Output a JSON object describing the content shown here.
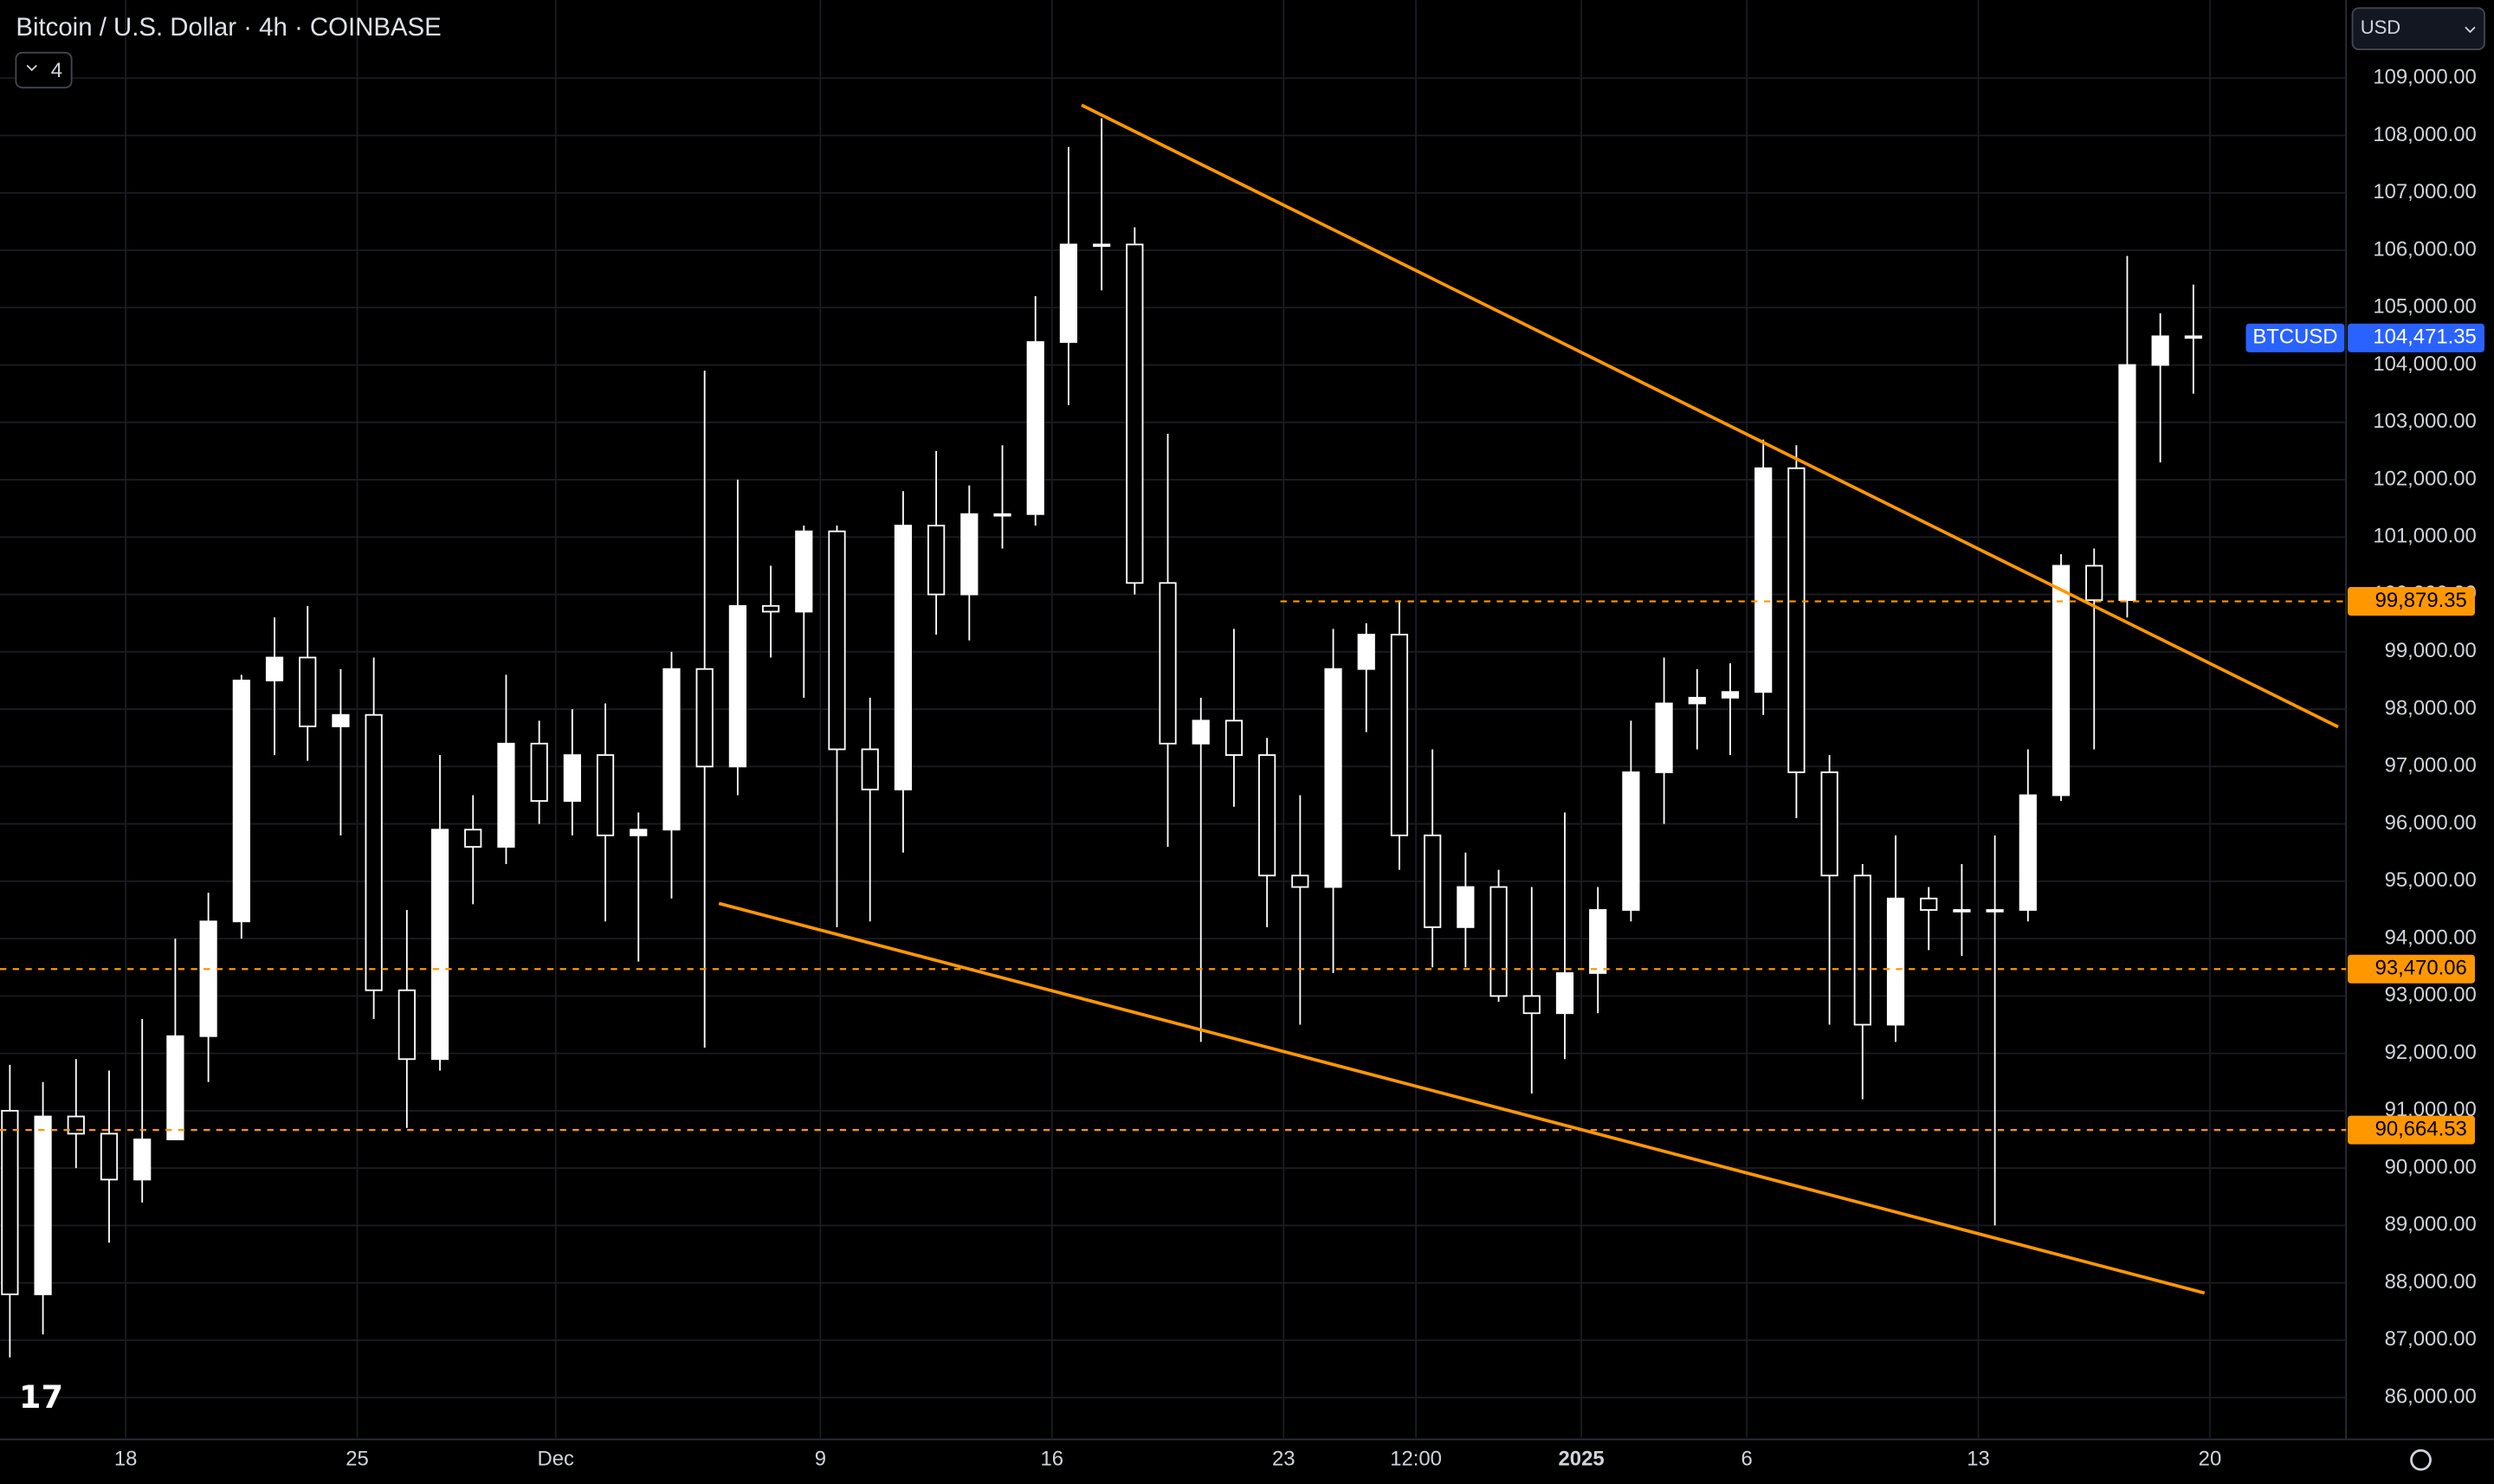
{
  "header": {
    "title": "Bitcoin / U.S. Dollar · 4h · COINBASE",
    "indicators": "4",
    "currency": "USD"
  },
  "chart_data": {
    "type": "candlestick",
    "color": "#ffffff",
    "grid": true,
    "categories": [
      null,
      null,
      null,
      null,
      "18",
      null,
      null,
      null,
      null,
      null,
      null,
      "25",
      null,
      null,
      null,
      null,
      null,
      "Dec",
      null,
      null,
      null,
      null,
      null,
      null,
      null,
      "9",
      null,
      null,
      null,
      null,
      null,
      null,
      "16",
      null,
      null,
      null,
      null,
      null,
      null,
      "23",
      null,
      null,
      null,
      "12:00",
      null,
      null,
      null,
      null,
      "2025",
      null,
      null,
      null,
      null,
      "6",
      null,
      null,
      null,
      null,
      null,
      null,
      "13",
      null,
      null,
      null,
      null,
      null,
      null,
      "20"
    ],
    "open": [
      91000,
      87800,
      90900,
      90600,
      89800,
      90500,
      92300,
      94300,
      98500,
      98900,
      97700,
      97900,
      93100,
      91900,
      95900,
      95600,
      97400,
      96400,
      97200,
      95800,
      95900,
      98700,
      97000,
      99800,
      99700,
      101100,
      97300,
      96600,
      101200,
      100000,
      101400,
      101400,
      104400,
      106100,
      106100,
      100200,
      97400,
      97800,
      97200,
      95100,
      94900,
      98700,
      99300,
      95800,
      94200,
      94900,
      93000,
      92700,
      93400,
      94500,
      96900,
      98100,
      98200,
      98300,
      102200,
      96900,
      95100,
      92500,
      94700,
      94500,
      94500,
      94500,
      96500,
      100500,
      99900,
      104000,
      104500,
      null
    ],
    "high": [
      91800,
      91500,
      91900,
      91700,
      92600,
      94000,
      94800,
      98600,
      99600,
      99800,
      98700,
      98900,
      94500,
      97200,
      96500,
      98600,
      97800,
      98000,
      98100,
      96200,
      99000,
      103900,
      102000,
      100500,
      101200,
      101200,
      98200,
      101800,
      102500,
      101900,
      102600,
      105200,
      107800,
      108300,
      106400,
      102800,
      98200,
      99400,
      97500,
      96500,
      99400,
      99500,
      99900,
      97300,
      95500,
      95200,
      94900,
      96200,
      94900,
      97800,
      98900,
      98700,
      98800,
      102700,
      102600,
      97200,
      95300,
      95800,
      94900,
      95300,
      95800,
      97300,
      100700,
      100800,
      105900,
      104900,
      105400,
      null
    ],
    "low": [
      86700,
      87100,
      90000,
      88700,
      89400,
      90500,
      91500,
      94000,
      97200,
      97100,
      95800,
      92600,
      90700,
      91700,
      94600,
      95300,
      96000,
      95800,
      94300,
      93600,
      94700,
      92100,
      96500,
      98900,
      98200,
      94200,
      94300,
      95500,
      99300,
      99200,
      100800,
      101200,
      103300,
      105300,
      100000,
      95600,
      92200,
      96300,
      94200,
      92500,
      93400,
      97600,
      95200,
      93500,
      93500,
      92900,
      91300,
      91900,
      92700,
      94300,
      96000,
      97300,
      97200,
      97900,
      96100,
      92500,
      91200,
      92200,
      93800,
      93700,
      89000,
      94300,
      96400,
      97300,
      99600,
      102300,
      103500,
      null
    ],
    "close": [
      87800,
      90900,
      90600,
      89800,
      90500,
      92300,
      94300,
      98500,
      98900,
      97700,
      97900,
      93100,
      91900,
      95900,
      95600,
      97400,
      96400,
      97200,
      95800,
      95900,
      98700,
      97000,
      99800,
      99700,
      101100,
      97300,
      96600,
      101200,
      100000,
      101400,
      101400,
      104400,
      106100,
      106100,
      100200,
      97400,
      97800,
      97200,
      95100,
      94900,
      98700,
      99300,
      95800,
      94200,
      94900,
      93000,
      92700,
      93400,
      94500,
      96900,
      98100,
      98200,
      98300,
      102200,
      96900,
      95100,
      92500,
      94700,
      94500,
      94500,
      94500,
      96500,
      100500,
      99900,
      104000,
      104500,
      104471.35,
      null
    ],
    "ylim": [
      85300,
      109500
    ],
    "yticks": [
      {
        "value": 86000,
        "label": "86,000.00"
      },
      {
        "value": 87000,
        "label": "87,000.00"
      },
      {
        "value": 88000,
        "label": "88,000.00"
      },
      {
        "value": 89000,
        "label": "89,000.00"
      },
      {
        "value": 90000,
        "label": "90,000.00"
      },
      {
        "value": 91000,
        "label": "91,000.00"
      },
      {
        "value": 92000,
        "label": "92,000.00"
      },
      {
        "value": 93000,
        "label": "93,000.00"
      },
      {
        "value": 94000,
        "label": "94,000.00"
      },
      {
        "value": 95000,
        "label": "95,000.00"
      },
      {
        "value": 96000,
        "label": "96,000.00"
      },
      {
        "value": 97000,
        "label": "97,000.00"
      },
      {
        "value": 98000,
        "label": "98,000.00"
      },
      {
        "value": 99000,
        "label": "99,000.00"
      },
      {
        "value": 100000,
        "label": "100,000.00"
      },
      {
        "value": 101000,
        "label": "101,000.00"
      },
      {
        "value": 102000,
        "label": "102,000.00"
      },
      {
        "value": 103000,
        "label": "103,000.00"
      },
      {
        "value": 104000,
        "label": "104,000.00"
      },
      {
        "value": 105000,
        "label": "105,000.00"
      },
      {
        "value": 106000,
        "label": "106,000.00"
      },
      {
        "value": 107000,
        "label": "107,000.00"
      },
      {
        "value": 108000,
        "label": "108,000.00"
      },
      {
        "value": 109000,
        "label": "109,000.00"
      }
    ],
    "price_lines": [
      {
        "value": 99879.35,
        "label": "99,879.35",
        "color": "#ff9800"
      },
      {
        "value": 93470.06,
        "label": "93,470.06",
        "color": "#ff9800"
      },
      {
        "value": 90664.53,
        "label": "90,664.53",
        "color": "#ff9800"
      }
    ],
    "last_price": {
      "name": "BTCUSD",
      "value": 104471.35,
      "label": "104,471.35",
      "color": "#2962ff"
    }
  }
}
